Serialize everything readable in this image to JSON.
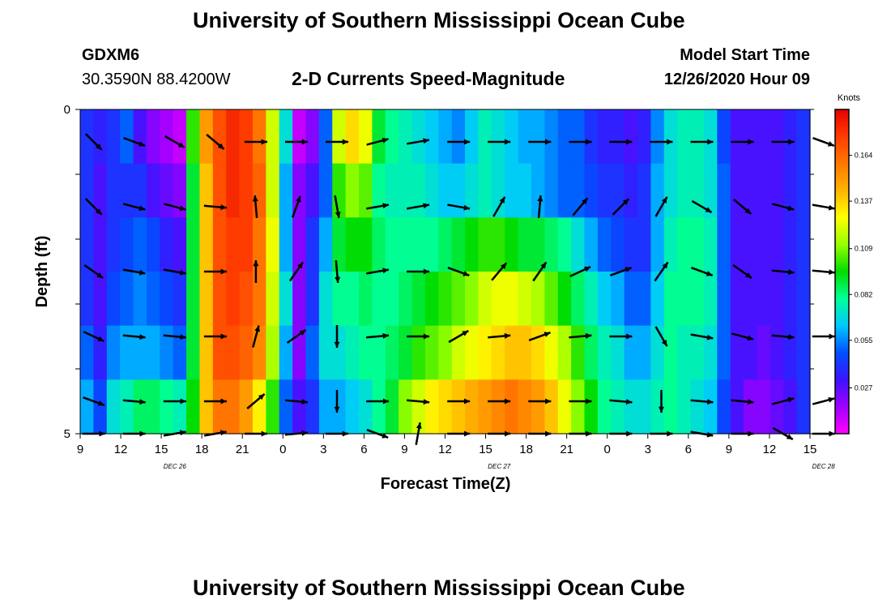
{
  "header": {
    "title_top": "University of Southern Mississippi Ocean Cube",
    "title_bottom": "University of Southern Mississippi Ocean Cube",
    "station_id": "GDXM6",
    "station_coords": "30.3590N 88.4200W",
    "model_label": "Model Start Time",
    "model_time": "12/26/2020 Hour 09"
  },
  "colors": {
    "palette": [
      "#ff00ff",
      "#a000ff",
      "#3c14ff",
      "#0050ff",
      "#00c8ff",
      "#00ff96",
      "#00dc00",
      "#96ff00",
      "#ffff00",
      "#ffb400",
      "#ff7800",
      "#ff3c00",
      "#e60000"
    ]
  },
  "chart_data": {
    "type": "heatmap",
    "title": "2-D Currents Speed-Magnitude",
    "xlabel": "Forecast Time(Z)",
    "ylabel": "Depth (ft)",
    "x_ticks": [
      "9",
      "12",
      "15",
      "18",
      "21",
      "0",
      "3",
      "6",
      "9",
      "12",
      "15",
      "18",
      "21",
      "0",
      "3",
      "6",
      "9",
      "12",
      "15"
    ],
    "date_labels": [
      {
        "label": "DEC 26",
        "x_hour": 16
      },
      {
        "label": "DEC 27",
        "x_hour": 40
      },
      {
        "label": "DEC 28",
        "x_hour": 64
      }
    ],
    "x_range_hours": [
      9,
      63
    ],
    "y_ticks": [
      "0",
      "5"
    ],
    "y_range": [
      0,
      5
    ],
    "colorbar": {
      "units": "Knots",
      "ticks": [
        "0.164",
        "0.137",
        "0.109",
        "0.082",
        "0.055",
        "0.027"
      ],
      "range": [
        0.0,
        0.191
      ]
    },
    "note": "Speed magnitude (knots) per depth level (rows, surface to 5 ft) and forecast hour (columns); arrows show current direction.",
    "z_columns_by_hour": [
      [
        0.04,
        0.04,
        0.04,
        0.04,
        0.05,
        0.06
      ],
      [
        0.035,
        0.03,
        0.03,
        0.03,
        0.035,
        0.045
      ],
      [
        0.04,
        0.04,
        0.04,
        0.045,
        0.055,
        0.07
      ],
      [
        0.05,
        0.04,
        0.045,
        0.05,
        0.06,
        0.075
      ],
      [
        0.03,
        0.04,
        0.05,
        0.055,
        0.06,
        0.085
      ],
      [
        0.02,
        0.03,
        0.045,
        0.05,
        0.06,
        0.085
      ],
      [
        0.015,
        0.025,
        0.035,
        0.045,
        0.055,
        0.08
      ],
      [
        0.01,
        0.02,
        0.03,
        0.04,
        0.05,
        0.075
      ],
      [
        0.1,
        0.09,
        0.09,
        0.09,
        0.09,
        0.095
      ],
      [
        0.15,
        0.14,
        0.14,
        0.14,
        0.14,
        0.14
      ],
      [
        0.17,
        0.17,
        0.17,
        0.17,
        0.17,
        0.16
      ],
      [
        0.18,
        0.18,
        0.175,
        0.175,
        0.17,
        0.16
      ],
      [
        0.175,
        0.175,
        0.175,
        0.17,
        0.165,
        0.15
      ],
      [
        0.16,
        0.165,
        0.16,
        0.16,
        0.155,
        0.13
      ],
      [
        0.12,
        0.12,
        0.125,
        0.12,
        0.115,
        0.1
      ],
      [
        0.07,
        0.06,
        0.06,
        0.07,
        0.06,
        0.05
      ],
      [
        0.01,
        0.02,
        0.02,
        0.02,
        0.02,
        0.03
      ],
      [
        0.02,
        0.03,
        0.04,
        0.04,
        0.05,
        0.04
      ],
      [
        0.05,
        0.05,
        0.06,
        0.07,
        0.07,
        0.06
      ],
      [
        0.12,
        0.1,
        0.09,
        0.08,
        0.07,
        0.06
      ],
      [
        0.135,
        0.11,
        0.095,
        0.08,
        0.075,
        0.065
      ],
      [
        0.125,
        0.105,
        0.095,
        0.085,
        0.08,
        0.07
      ],
      [
        0.09,
        0.08,
        0.085,
        0.08,
        0.08,
        0.08
      ],
      [
        0.08,
        0.075,
        0.08,
        0.08,
        0.085,
        0.09
      ],
      [
        0.075,
        0.075,
        0.08,
        0.085,
        0.09,
        0.11
      ],
      [
        0.07,
        0.075,
        0.08,
        0.09,
        0.1,
        0.12
      ],
      [
        0.065,
        0.07,
        0.08,
        0.095,
        0.105,
        0.13
      ],
      [
        0.06,
        0.065,
        0.085,
        0.1,
        0.11,
        0.135
      ],
      [
        0.055,
        0.065,
        0.09,
        0.105,
        0.12,
        0.14
      ],
      [
        0.065,
        0.07,
        0.095,
        0.11,
        0.125,
        0.145
      ],
      [
        0.075,
        0.075,
        0.1,
        0.12,
        0.13,
        0.15
      ],
      [
        0.07,
        0.07,
        0.1,
        0.125,
        0.135,
        0.155
      ],
      [
        0.065,
        0.065,
        0.095,
        0.125,
        0.14,
        0.16
      ],
      [
        0.06,
        0.065,
        0.09,
        0.12,
        0.14,
        0.155
      ],
      [
        0.06,
        0.06,
        0.09,
        0.115,
        0.135,
        0.15
      ],
      [
        0.055,
        0.055,
        0.085,
        0.105,
        0.125,
        0.14
      ],
      [
        0.05,
        0.05,
        0.08,
        0.095,
        0.115,
        0.125
      ],
      [
        0.05,
        0.05,
        0.07,
        0.085,
        0.1,
        0.11
      ],
      [
        0.04,
        0.045,
        0.06,
        0.075,
        0.085,
        0.095
      ],
      [
        0.035,
        0.04,
        0.05,
        0.065,
        0.075,
        0.08
      ],
      [
        0.035,
        0.04,
        0.045,
        0.06,
        0.07,
        0.075
      ],
      [
        0.03,
        0.035,
        0.04,
        0.05,
        0.06,
        0.07
      ],
      [
        0.035,
        0.04,
        0.04,
        0.05,
        0.06,
        0.07
      ],
      [
        0.055,
        0.06,
        0.06,
        0.065,
        0.07,
        0.075
      ],
      [
        0.07,
        0.07,
        0.075,
        0.08,
        0.08,
        0.08
      ],
      [
        0.075,
        0.075,
        0.08,
        0.08,
        0.075,
        0.075
      ],
      [
        0.075,
        0.075,
        0.08,
        0.08,
        0.075,
        0.07
      ],
      [
        0.07,
        0.07,
        0.075,
        0.075,
        0.07,
        0.065
      ],
      [
        0.045,
        0.05,
        0.05,
        0.05,
        0.05,
        0.045
      ],
      [
        0.03,
        0.03,
        0.03,
        0.03,
        0.03,
        0.03
      ],
      [
        0.03,
        0.03,
        0.03,
        0.03,
        0.03,
        0.02
      ],
      [
        0.03,
        0.03,
        0.03,
        0.03,
        0.025,
        0.02
      ],
      [
        0.03,
        0.03,
        0.03,
        0.03,
        0.03,
        0.025
      ],
      [
        0.035,
        0.035,
        0.035,
        0.035,
        0.035,
        0.03
      ],
      [
        0.04,
        0.04,
        0.04,
        0.04,
        0.04,
        0.04
      ]
    ],
    "vectors_by_depth": [
      {
        "depth": 0.5,
        "directions_deg": [
          45,
          20,
          30,
          40,
          0,
          0,
          0,
          -15,
          -10,
          0,
          0,
          0,
          0,
          0,
          0,
          0,
          0,
          0,
          20
        ]
      },
      {
        "depth": 1.5,
        "directions_deg": [
          45,
          15,
          15,
          5,
          -95,
          -70,
          80,
          -10,
          -10,
          10,
          -60,
          -85,
          -50,
          -45,
          -60,
          30,
          40,
          15,
          10
        ]
      },
      {
        "depth": 2.5,
        "directions_deg": [
          35,
          10,
          10,
          0,
          -90,
          -55,
          85,
          -10,
          0,
          20,
          -50,
          -55,
          -25,
          -20,
          -55,
          20,
          35,
          5,
          5
        ]
      },
      {
        "depth": 3.5,
        "directions_deg": [
          25,
          5,
          5,
          0,
          -75,
          -35,
          90,
          -5,
          0,
          -30,
          -5,
          -20,
          -5,
          0,
          60,
          10,
          15,
          5,
          0
        ]
      },
      {
        "depth": 4.5,
        "directions_deg": [
          20,
          5,
          0,
          0,
          -40,
          5,
          90,
          0,
          5,
          0,
          0,
          0,
          0,
          5,
          90,
          5,
          5,
          -15,
          -15
        ]
      },
      {
        "depth": 5.0,
        "directions_deg": [
          0,
          0,
          -10,
          -10,
          0,
          -5,
          0,
          20,
          -80,
          0,
          0,
          0,
          0,
          0,
          0,
          10,
          0,
          30,
          0
        ]
      }
    ]
  }
}
